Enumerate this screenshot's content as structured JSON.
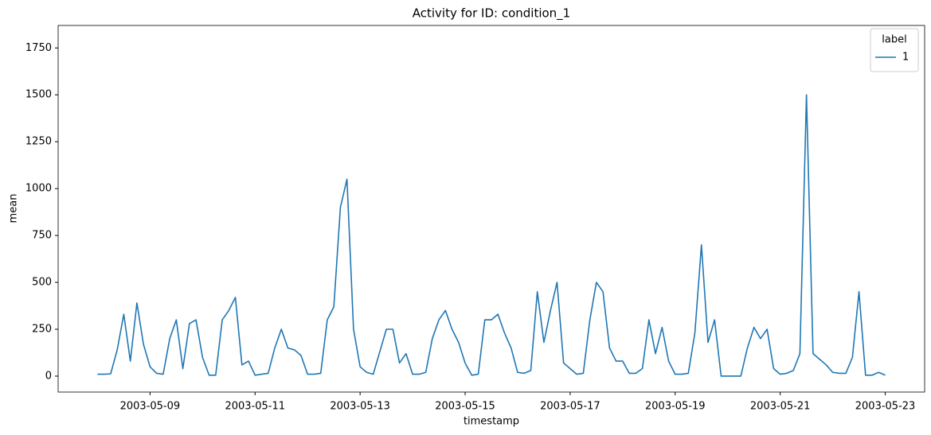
{
  "chart_data": {
    "type": "line",
    "title": "Activity for ID: condition_1",
    "x_label": "timestamp",
    "y_label": "mean",
    "legend_title": "label",
    "legend_position": "upper right",
    "x": [
      "2003-05-08 00:00",
      "2003-05-08 03:00",
      "2003-05-08 06:00",
      "2003-05-08 09:00",
      "2003-05-08 12:00",
      "2003-05-08 15:00",
      "2003-05-08 18:00",
      "2003-05-08 21:00",
      "2003-05-09 00:00",
      "2003-05-09 03:00",
      "2003-05-09 06:00",
      "2003-05-09 09:00",
      "2003-05-09 12:00",
      "2003-05-09 15:00",
      "2003-05-09 18:00",
      "2003-05-09 21:00",
      "2003-05-10 00:00",
      "2003-05-10 03:00",
      "2003-05-10 06:00",
      "2003-05-10 09:00",
      "2003-05-10 12:00",
      "2003-05-10 15:00",
      "2003-05-10 18:00",
      "2003-05-10 21:00",
      "2003-05-11 00:00",
      "2003-05-11 03:00",
      "2003-05-11 06:00",
      "2003-05-11 09:00",
      "2003-05-11 12:00",
      "2003-05-11 15:00",
      "2003-05-11 18:00",
      "2003-05-11 21:00",
      "2003-05-12 00:00",
      "2003-05-12 03:00",
      "2003-05-12 06:00",
      "2003-05-12 09:00",
      "2003-05-12 12:00",
      "2003-05-12 15:00",
      "2003-05-12 18:00",
      "2003-05-12 21:00",
      "2003-05-13 00:00",
      "2003-05-13 03:00",
      "2003-05-13 06:00",
      "2003-05-13 09:00",
      "2003-05-13 12:00",
      "2003-05-13 15:00",
      "2003-05-13 18:00",
      "2003-05-13 21:00",
      "2003-05-14 00:00",
      "2003-05-14 03:00",
      "2003-05-14 06:00",
      "2003-05-14 09:00",
      "2003-05-14 12:00",
      "2003-05-14 15:00",
      "2003-05-14 18:00",
      "2003-05-14 21:00",
      "2003-05-15 00:00",
      "2003-05-15 03:00",
      "2003-05-15 06:00",
      "2003-05-15 09:00",
      "2003-05-15 12:00",
      "2003-05-15 15:00",
      "2003-05-15 18:00",
      "2003-05-15 21:00",
      "2003-05-16 00:00",
      "2003-05-16 03:00",
      "2003-05-16 06:00",
      "2003-05-16 09:00",
      "2003-05-16 12:00",
      "2003-05-16 15:00",
      "2003-05-16 18:00",
      "2003-05-16 21:00",
      "2003-05-17 00:00",
      "2003-05-17 03:00",
      "2003-05-17 06:00",
      "2003-05-17 09:00",
      "2003-05-17 12:00",
      "2003-05-17 15:00",
      "2003-05-17 18:00",
      "2003-05-17 21:00",
      "2003-05-18 00:00",
      "2003-05-18 03:00",
      "2003-05-18 06:00",
      "2003-05-18 09:00",
      "2003-05-18 12:00",
      "2003-05-18 15:00",
      "2003-05-18 18:00",
      "2003-05-18 21:00",
      "2003-05-19 00:00",
      "2003-05-19 03:00",
      "2003-05-19 06:00",
      "2003-05-19 09:00",
      "2003-05-19 12:00",
      "2003-05-19 15:00",
      "2003-05-19 18:00",
      "2003-05-19 21:00",
      "2003-05-20 00:00",
      "2003-05-20 03:00",
      "2003-05-20 06:00",
      "2003-05-20 09:00",
      "2003-05-20 12:00",
      "2003-05-20 15:00",
      "2003-05-20 18:00",
      "2003-05-20 21:00",
      "2003-05-21 00:00",
      "2003-05-21 03:00",
      "2003-05-21 06:00",
      "2003-05-21 09:00",
      "2003-05-21 12:00",
      "2003-05-21 15:00",
      "2003-05-21 18:00",
      "2003-05-21 21:00",
      "2003-05-22 00:00",
      "2003-05-22 03:00",
      "2003-05-22 06:00",
      "2003-05-22 09:00",
      "2003-05-22 12:00",
      "2003-05-22 15:00",
      "2003-05-22 18:00",
      "2003-05-22 21:00",
      "2003-05-23 00:00"
    ],
    "series": [
      {
        "name": "1",
        "color": "#1f77b4",
        "values": [
          10,
          10,
          12,
          140,
          330,
          80,
          390,
          170,
          50,
          15,
          10,
          200,
          300,
          40,
          280,
          300,
          100,
          5,
          5,
          300,
          350,
          420,
          60,
          80,
          5,
          10,
          15,
          150,
          250,
          150,
          140,
          110,
          10,
          10,
          15,
          300,
          370,
          900,
          1050,
          250,
          50,
          20,
          10,
          130,
          250,
          250,
          70,
          120,
          10,
          10,
          20,
          200,
          300,
          350,
          250,
          180,
          70,
          5,
          10,
          300,
          300,
          330,
          230,
          150,
          20,
          15,
          30,
          450,
          180,
          350,
          500,
          70,
          40,
          10,
          15,
          300,
          500,
          450,
          150,
          80,
          80,
          15,
          15,
          40,
          300,
          120,
          260,
          80,
          10,
          10,
          15,
          230,
          700,
          180,
          300,
          0,
          0,
          0,
          0,
          150,
          260,
          200,
          250,
          40,
          10,
          15,
          30,
          120,
          1500,
          120,
          90,
          60,
          20,
          15,
          15,
          100,
          450,
          5,
          5,
          20,
          5
        ]
      }
    ],
    "xlim": [
      "2003-05-07 06:00",
      "2003-05-23 18:00"
    ],
    "ylim": [
      -85,
      1870
    ],
    "xticks": [
      {
        "value": "2003-05-09 00:00",
        "label": "2003-05-09"
      },
      {
        "value": "2003-05-11 00:00",
        "label": "2003-05-11"
      },
      {
        "value": "2003-05-13 00:00",
        "label": "2003-05-13"
      },
      {
        "value": "2003-05-15 00:00",
        "label": "2003-05-15"
      },
      {
        "value": "2003-05-17 00:00",
        "label": "2003-05-17"
      },
      {
        "value": "2003-05-19 00:00",
        "label": "2003-05-19"
      },
      {
        "value": "2003-05-21 00:00",
        "label": "2003-05-21"
      },
      {
        "value": "2003-05-23 00:00",
        "label": "2003-05-23"
      }
    ],
    "yticks": [
      0,
      250,
      500,
      750,
      1000,
      1250,
      1500,
      1750
    ],
    "grid": false
  }
}
